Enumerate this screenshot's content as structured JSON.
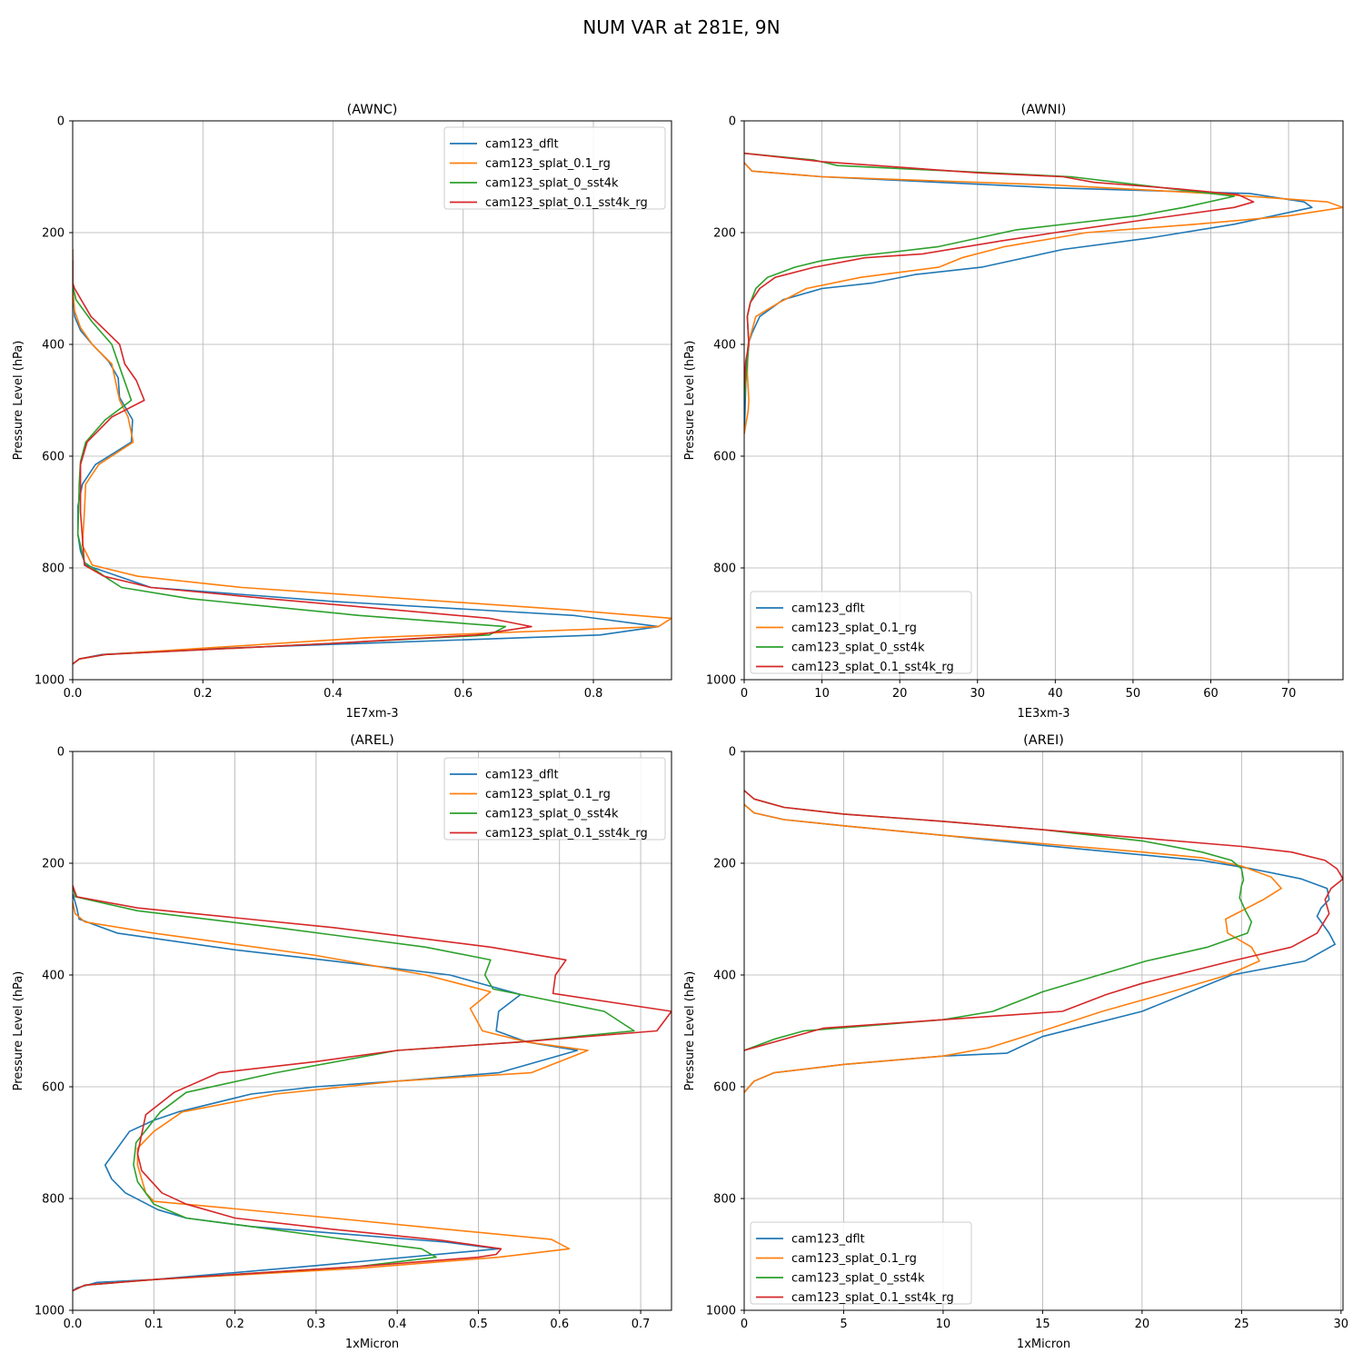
{
  "figure": {
    "title": "NUM VAR at 281E, 9N"
  },
  "chart_data": [
    {
      "type": "line",
      "title": "(AWNC)",
      "xlabel": "1E7xm-3",
      "ylabel": "Pressure Level (hPa)",
      "xlim": [
        0,
        0.92
      ],
      "ylim": [
        1000,
        0
      ],
      "xticks": [
        0.0,
        0.2,
        0.4,
        0.6,
        0.8
      ],
      "xtick_labels": [
        "0.0",
        "0.2",
        "0.4",
        "0.6",
        "0.8"
      ],
      "yticks": [
        0,
        200,
        400,
        600,
        800,
        1000
      ],
      "ytick_labels": [
        "0",
        "200",
        "400",
        "600",
        "800",
        "1000"
      ],
      "grid": true,
      "legend": "upper right",
      "series": [
        {
          "name": "cam123_dflt",
          "color": "#1f77b4",
          "x": [
            0,
            0,
            0.003,
            0.012,
            0.03,
            0.055,
            0.07,
            0.072,
            0.092,
            0.09,
            0.035,
            0.015,
            0.008,
            0.008,
            0.012,
            0.02,
            0.12,
            0.4,
            0.77,
            0.9,
            0.81,
            0.2,
            0.045,
            0.01,
            0
          ],
          "y": [
            230,
            300,
            350,
            375,
            400,
            430,
            460,
            495,
            535,
            575,
            615,
            650,
            690,
            740,
            770,
            795,
            835,
            860,
            885,
            905,
            920,
            945,
            955,
            963,
            972
          ]
        },
        {
          "name": "cam123_splat_0.1_rg",
          "color": "#ff7f0e",
          "x": [
            0,
            0,
            0.003,
            0.012,
            0.03,
            0.06,
            0.072,
            0.085,
            0.093,
            0.04,
            0.02,
            0.018,
            0.015,
            0.03,
            0.1,
            0.26,
            0.76,
            0.92,
            0.9,
            0.45,
            0.05,
            0.01,
            0
          ],
          "y": [
            230,
            300,
            340,
            370,
            400,
            435,
            500,
            530,
            575,
            615,
            650,
            700,
            760,
            795,
            815,
            835,
            875,
            890,
            905,
            925,
            955,
            963,
            972
          ]
        },
        {
          "name": "cam123_splat_0_sst4k",
          "color": "#2ca02c",
          "x": [
            0,
            0,
            0.005,
            0.03,
            0.06,
            0.075,
            0.09,
            0.05,
            0.02,
            0.012,
            0.01,
            0.008,
            0.018,
            0.055,
            0.075,
            0.18,
            0.44,
            0.665,
            0.64,
            0.4,
            0.05,
            0.01,
            0
          ],
          "y": [
            250,
            295,
            320,
            360,
            400,
            450,
            500,
            535,
            575,
            610,
            650,
            740,
            790,
            820,
            835,
            855,
            885,
            905,
            920,
            935,
            955,
            963,
            972
          ]
        },
        {
          "name": "cam123_splat_0.1_sst4k_rg",
          "color": "#d62728",
          "x": [
            0,
            0,
            0.003,
            0.028,
            0.05,
            0.072,
            0.08,
            0.098,
            0.11,
            0.06,
            0.022,
            0.012,
            0.012,
            0.018,
            0.048,
            0.12,
            0.3,
            0.64,
            0.705,
            0.62,
            0.4,
            0.05,
            0.01,
            0
          ],
          "y": [
            250,
            290,
            300,
            350,
            375,
            400,
            435,
            465,
            500,
            530,
            575,
            615,
            700,
            795,
            815,
            835,
            855,
            890,
            905,
            920,
            935,
            955,
            963,
            972
          ]
        }
      ]
    },
    {
      "type": "line",
      "title": "(AWNI)",
      "xlabel": "1E3xm-3",
      "ylabel": "Pressure Level (hPa)",
      "xlim": [
        0,
        77
      ],
      "ylim": [
        1000,
        0
      ],
      "xticks": [
        0,
        10,
        20,
        30,
        40,
        50,
        60,
        70
      ],
      "xtick_labels": [
        "0",
        "10",
        "20",
        "30",
        "40",
        "50",
        "60",
        "70"
      ],
      "yticks": [
        0,
        200,
        400,
        600,
        800,
        1000
      ],
      "ytick_labels": [
        "0",
        "200",
        "400",
        "600",
        "800",
        "1000"
      ],
      "grid": true,
      "legend": "lower left",
      "series": [
        {
          "name": "cam123_dflt",
          "color": "#1f77b4",
          "x": [
            0,
            1,
            10,
            40,
            65,
            72,
            73,
            63,
            52,
            41,
            30.5,
            22,
            16.5,
            10,
            5,
            2,
            1,
            0.5,
            0.3,
            0.2,
            0.1,
            0
          ],
          "y": [
            75,
            90,
            100,
            120,
            130,
            145,
            155,
            185,
            210,
            230,
            262,
            275,
            290,
            300,
            320,
            350,
            380,
            400,
            430,
            470,
            520,
            560
          ]
        },
        {
          "name": "cam123_splat_0.1_rg",
          "color": "#ff7f0e",
          "x": [
            0,
            1,
            10,
            40,
            60,
            75,
            77,
            70,
            58,
            44,
            33.5,
            28,
            25,
            15,
            8,
            4.5,
            1.5,
            0.5,
            0.4,
            0.6,
            0.5,
            0
          ],
          "y": [
            75,
            90,
            100,
            115,
            130,
            145,
            155,
            170,
            185,
            200,
            225,
            245,
            262,
            280,
            300,
            325,
            350,
            400,
            450,
            500,
            520,
            560
          ]
        },
        {
          "name": "cam123_splat_0_sst4k",
          "color": "#2ca02c",
          "x": [
            0,
            9,
            12,
            42,
            63,
            56.5,
            50.5,
            42.5,
            35,
            30,
            25,
            19,
            12.5,
            10,
            6.5,
            3,
            1.5,
            0.8,
            0.4,
            0.6,
            0.3,
            0
          ],
          "y": [
            58,
            70,
            80,
            100,
            135,
            155,
            170,
            183,
            195,
            210,
            225,
            235,
            245,
            250,
            262,
            280,
            300,
            325,
            350,
            400,
            450,
            500
          ]
        },
        {
          "name": "cam123_splat_0.1_sst4k_rg",
          "color": "#d62728",
          "x": [
            0,
            10,
            30,
            41,
            45,
            56,
            63.5,
            65.5,
            63,
            51,
            40,
            33,
            23,
            15.5,
            9,
            4,
            2,
            0.8,
            0.4,
            0.6,
            0.2,
            0
          ],
          "y": [
            58,
            73,
            93,
            100,
            110,
            122,
            132,
            145,
            155,
            178,
            200,
            215,
            238,
            245,
            262,
            280,
            300,
            325,
            350,
            400,
            430,
            480
          ]
        }
      ]
    },
    {
      "type": "line",
      "title": "(AREL)",
      "xlabel": "1xMicron",
      "ylabel": "Pressure Level (hPa)",
      "xlim": [
        0,
        0.738
      ],
      "ylim": [
        1000,
        0
      ],
      "xticks": [
        0.0,
        0.1,
        0.2,
        0.3,
        0.4,
        0.5,
        0.6,
        0.7
      ],
      "xtick_labels": [
        "0.0",
        "0.1",
        "0.2",
        "0.3",
        "0.4",
        "0.5",
        "0.6",
        "0.7"
      ],
      "yticks": [
        0,
        200,
        400,
        600,
        800,
        1000
      ],
      "ytick_labels": [
        "0",
        "200",
        "400",
        "600",
        "800",
        "1000"
      ],
      "grid": true,
      "legend": "upper right",
      "series": [
        {
          "name": "cam123_dflt",
          "color": "#1f77b4",
          "x": [
            0,
            0.005,
            0.008,
            0.055,
            0.2,
            0.32,
            0.465,
            0.552,
            0.525,
            0.522,
            0.56,
            0.622,
            0.525,
            0.4,
            0.3,
            0.22,
            0.13,
            0.1,
            0.07,
            0.055,
            0.04,
            0.048,
            0.065,
            0.105,
            0.14,
            0.22,
            0.46,
            0.525,
            0.3,
            0.1,
            0.03,
            0.005,
            0
          ],
          "y": [
            255,
            280,
            300,
            325,
            355,
            375,
            400,
            435,
            465,
            500,
            520,
            535,
            575,
            590,
            600,
            613,
            645,
            660,
            680,
            710,
            740,
            765,
            790,
            820,
            835,
            850,
            878,
            890,
            920,
            945,
            950,
            960,
            965
          ]
        },
        {
          "name": "cam123_splat_0.1_rg",
          "color": "#ff7f0e",
          "x": [
            0,
            0.003,
            0.015,
            0.1,
            0.3,
            0.435,
            0.515,
            0.49,
            0.505,
            0.56,
            0.635,
            0.565,
            0.4,
            0.25,
            0.135,
            0.1,
            0.08,
            0.08,
            0.09,
            0.1,
            0.175,
            0.32,
            0.46,
            0.59,
            0.612,
            0.525,
            0.35,
            0.1,
            0.015,
            0
          ],
          "y": [
            270,
            290,
            305,
            325,
            365,
            400,
            430,
            460,
            500,
            520,
            535,
            575,
            590,
            613,
            645,
            680,
            710,
            740,
            790,
            805,
            815,
            835,
            855,
            873,
            890,
            905,
            925,
            945,
            955,
            965
          ]
        },
        {
          "name": "cam123_splat_0_sst4k",
          "color": "#2ca02c",
          "x": [
            0,
            0.003,
            0.08,
            0.25,
            0.435,
            0.515,
            0.508,
            0.518,
            0.552,
            0.655,
            0.692,
            0.55,
            0.4,
            0.25,
            0.14,
            0.108,
            0.078,
            0.075,
            0.08,
            0.1,
            0.14,
            0.22,
            0.32,
            0.43,
            0.448,
            0.35,
            0.1,
            0.015,
            0
          ],
          "y": [
            240,
            260,
            285,
            315,
            350,
            373,
            400,
            425,
            435,
            465,
            500,
            520,
            535,
            575,
            610,
            645,
            700,
            740,
            770,
            810,
            835,
            850,
            870,
            890,
            905,
            922,
            945,
            955,
            965
          ]
        },
        {
          "name": "cam123_splat_0.1_sst4k_rg",
          "color": "#d62728",
          "x": [
            0,
            0.005,
            0.08,
            0.32,
            0.515,
            0.608,
            0.595,
            0.592,
            0.738,
            0.72,
            0.55,
            0.4,
            0.3,
            0.18,
            0.125,
            0.09,
            0.08,
            0.085,
            0.11,
            0.14,
            0.2,
            0.32,
            0.455,
            0.528,
            0.522,
            0.5,
            0.35,
            0.1,
            0.015,
            0
          ],
          "y": [
            240,
            260,
            280,
            315,
            350,
            373,
            400,
            433,
            465,
            500,
            520,
            535,
            555,
            575,
            610,
            650,
            720,
            750,
            790,
            810,
            835,
            855,
            875,
            890,
            900,
            905,
            922,
            945,
            955,
            965
          ]
        }
      ]
    },
    {
      "type": "line",
      "title": "(AREI)",
      "xlabel": "1xMicron",
      "ylabel": "Pressure Level (hPa)",
      "xlim": [
        0,
        30.1
      ],
      "ylim": [
        1000,
        0
      ],
      "xticks": [
        0,
        5,
        10,
        15,
        20,
        25,
        30
      ],
      "xtick_labels": [
        "0",
        "5",
        "10",
        "15",
        "20",
        "25",
        "30"
      ],
      "yticks": [
        0,
        200,
        400,
        600,
        800,
        1000
      ],
      "ytick_labels": [
        "0",
        "200",
        "400",
        "600",
        "800",
        "1000"
      ],
      "grid": true,
      "legend": "lower left",
      "series": [
        {
          "name": "cam123_dflt",
          "color": "#1f77b4",
          "x": [
            0,
            0.5,
            2,
            5,
            10,
            15,
            20,
            23,
            25.5,
            28,
            29.3,
            29.4,
            29,
            28.8,
            29.4,
            29.7,
            28.2,
            24.5,
            20,
            15,
            13.2,
            10,
            5,
            1.5,
            0.5,
            0
          ],
          "y": [
            95,
            110,
            122,
            133,
            150,
            168,
            185,
            195,
            210,
            228,
            245,
            265,
            280,
            295,
            325,
            345,
            375,
            400,
            465,
            510,
            540,
            545,
            560,
            575,
            590,
            610
          ]
        },
        {
          "name": "cam123_splat_0.1_rg",
          "color": "#ff7f0e",
          "x": [
            0,
            0.5,
            2,
            5,
            10,
            15,
            20,
            23,
            25,
            26.5,
            27,
            26.1,
            24.2,
            24.3,
            25.5,
            25.9,
            24.3,
            21,
            18,
            15,
            12.3,
            10,
            5,
            1.5,
            0.5,
            0
          ],
          "y": [
            95,
            110,
            122,
            133,
            150,
            165,
            180,
            190,
            205,
            225,
            245,
            265,
            300,
            325,
            350,
            375,
            400,
            435,
            465,
            500,
            530,
            545,
            560,
            575,
            590,
            610
          ]
        },
        {
          "name": "cam123_splat_0_sst4k",
          "color": "#2ca02c",
          "x": [
            0,
            0.5,
            2,
            5,
            10,
            15,
            20,
            23,
            24.5,
            25,
            25.1,
            25.0,
            24.9,
            25.2,
            25.5,
            25.3,
            23.3,
            20.2,
            15,
            12.5,
            10,
            3,
            1.5,
            0
          ],
          "y": [
            70,
            85,
            100,
            112,
            125,
            140,
            160,
            180,
            195,
            210,
            230,
            240,
            262,
            285,
            305,
            325,
            350,
            375,
            430,
            465,
            480,
            500,
            515,
            535
          ]
        },
        {
          "name": "cam123_splat_0.1_sst4k_rg",
          "color": "#d62728",
          "x": [
            0,
            0.5,
            2,
            5,
            10,
            15,
            20,
            25,
            27.5,
            29.2,
            29.8,
            30.1,
            29.5,
            29.2,
            29.4,
            28.8,
            27.5,
            24.5,
            20,
            18.2,
            16,
            10,
            4,
            0
          ],
          "y": [
            70,
            85,
            100,
            112,
            125,
            140,
            155,
            170,
            180,
            195,
            210,
            228,
            245,
            265,
            290,
            325,
            350,
            375,
            415,
            435,
            465,
            480,
            495,
            535
          ]
        }
      ]
    }
  ]
}
